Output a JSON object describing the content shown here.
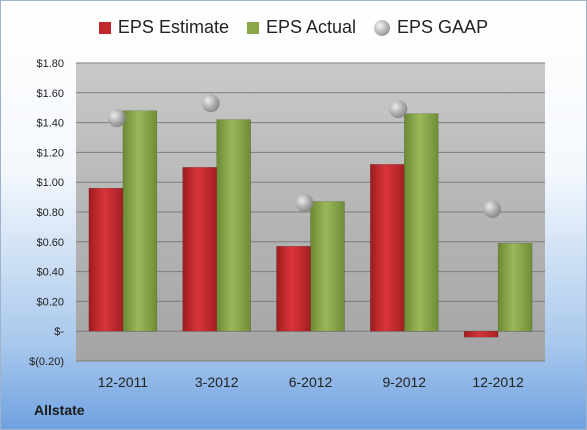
{
  "chart_data": {
    "type": "bar",
    "categories": [
      "12-2011",
      "3-2012",
      "6-2012",
      "9-2012",
      "12-2012"
    ],
    "series": [
      {
        "name": "EPS Estimate",
        "values": [
          0.96,
          1.1,
          0.57,
          1.12,
          -0.04
        ],
        "color": "#c0282b"
      },
      {
        "name": "EPS Actual",
        "values": [
          1.48,
          1.42,
          0.87,
          1.46,
          0.59
        ],
        "color": "#8aa84a"
      },
      {
        "name": "EPS GAAP",
        "values": [
          1.43,
          1.53,
          0.86,
          1.49,
          0.82
        ],
        "color": "#b8b8b8",
        "marker": "circle"
      }
    ],
    "y_ticks": [
      -0.2,
      0,
      0.2,
      0.4,
      0.6,
      0.8,
      1.0,
      1.2,
      1.4,
      1.6,
      1.8
    ],
    "y_tick_labels": [
      "$(0.20)",
      "$-",
      "$0.20",
      "$0.40",
      "$0.60",
      "$0.80",
      "$1.00",
      "$1.20",
      "$1.40",
      "$1.60",
      "$1.80"
    ],
    "ylim": [
      -0.2,
      1.8
    ],
    "grid": true,
    "legend": "top"
  },
  "footer": {
    "company": "Allstate"
  }
}
